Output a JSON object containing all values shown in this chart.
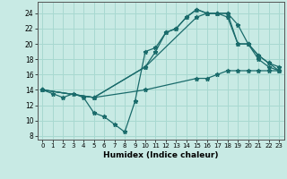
{
  "xlabel": "Humidex (Indice chaleur)",
  "bg_color": "#c8eae4",
  "grid_color": "#a8d8d0",
  "line_color": "#1a6b6b",
  "xlim": [
    -0.5,
    23.5
  ],
  "ylim": [
    7.5,
    25.5
  ],
  "yticks": [
    8,
    10,
    12,
    14,
    16,
    18,
    20,
    22,
    24
  ],
  "xticks": [
    0,
    1,
    2,
    3,
    4,
    5,
    6,
    7,
    8,
    9,
    10,
    11,
    12,
    13,
    14,
    15,
    16,
    17,
    18,
    19,
    20,
    21,
    22,
    23
  ],
  "series": [
    {
      "x": [
        0,
        1,
        2,
        3,
        4,
        5,
        6,
        7,
        8,
        9,
        10,
        11,
        12,
        13,
        14,
        15,
        16,
        17,
        18,
        19,
        20,
        21,
        22,
        23
      ],
      "y": [
        14,
        13.5,
        13,
        13.5,
        13,
        11,
        10.5,
        9.5,
        8.5,
        12.5,
        19,
        19.5,
        21.5,
        22,
        23.5,
        24.5,
        24,
        24,
        24,
        22.5,
        20,
        18,
        17,
        16.5
      ]
    },
    {
      "x": [
        0,
        5,
        10,
        11,
        12,
        13,
        14,
        15,
        16,
        17,
        18,
        19,
        20,
        21,
        22,
        23
      ],
      "y": [
        14,
        13,
        17,
        19,
        21.5,
        22,
        23.5,
        24.5,
        24,
        24,
        23.5,
        20,
        20,
        18.5,
        17.5,
        16.5
      ]
    },
    {
      "x": [
        0,
        5,
        10,
        15,
        16,
        17,
        18,
        19,
        20,
        21,
        22,
        23
      ],
      "y": [
        14,
        13,
        17,
        23.5,
        24,
        24,
        24,
        20,
        20,
        18.5,
        17.5,
        17
      ]
    },
    {
      "x": [
        0,
        5,
        10,
        15,
        16,
        17,
        18,
        19,
        20,
        21,
        22,
        23
      ],
      "y": [
        14,
        13,
        14,
        15.5,
        15.5,
        16,
        16.5,
        16.5,
        16.5,
        16.5,
        16.5,
        16.5
      ]
    }
  ]
}
